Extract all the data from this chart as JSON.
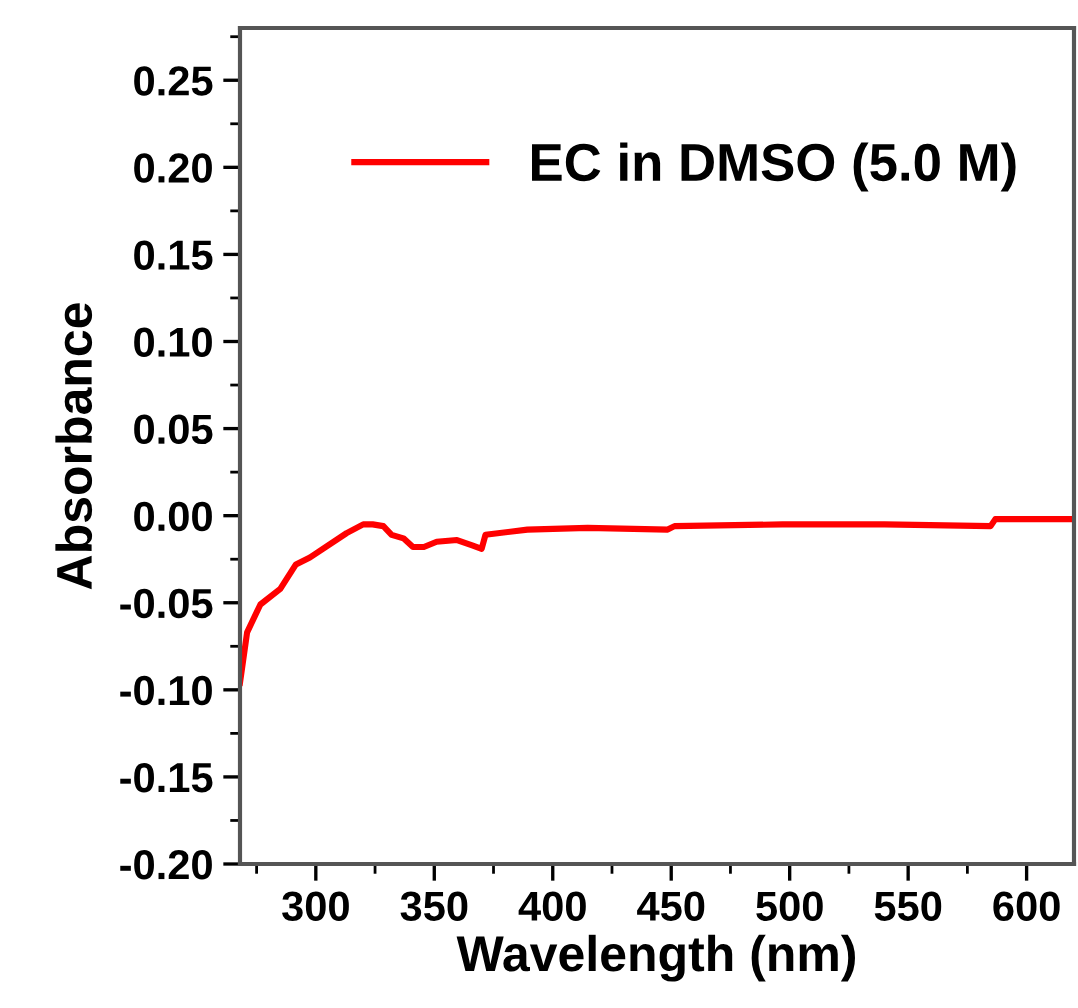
{
  "chart_data": {
    "type": "line",
    "xlabel": "Wavelength (nm)",
    "ylabel": "Absorbance",
    "xlim": [
      268,
      620
    ],
    "ylim": [
      -0.2,
      0.28
    ],
    "xticks": [
      300,
      350,
      400,
      450,
      500,
      550,
      600
    ],
    "yticks": [
      {
        "value": -0.2,
        "label": "-0.20"
      },
      {
        "value": -0.15,
        "label": "-0.15"
      },
      {
        "value": -0.1,
        "label": "-0.10"
      },
      {
        "value": -0.05,
        "label": "-0.05"
      },
      {
        "value": 0.0,
        "label": "0.00"
      },
      {
        "value": 0.05,
        "label": "0.05"
      },
      {
        "value": 0.1,
        "label": "0.10"
      },
      {
        "value": 0.15,
        "label": "0.15"
      },
      {
        "value": 0.2,
        "label": "0.20"
      },
      {
        "value": 0.25,
        "label": "0.25"
      }
    ],
    "grid": false,
    "legend": "top right",
    "marker": "none",
    "line_style": "solid",
    "series": [
      {
        "name": "EC in DMSO (5.0 M)",
        "color": "#ff0000",
        "x": [
          268,
          271,
          276.6,
          285,
          291.6,
          297.5,
          313,
          320,
          324,
          328.5,
          332,
          337,
          341,
          345.6,
          351,
          359.6,
          366,
          370,
          371.6,
          389.3,
          414.7,
          448.5,
          451.4,
          497,
          540,
          584.8,
          586.8,
          620
        ],
        "values": [
          -0.096,
          -0.067,
          -0.051,
          -0.042,
          -0.028,
          -0.024,
          -0.01,
          -0.005,
          -0.005,
          -0.006,
          -0.011,
          -0.013,
          -0.018,
          -0.018,
          -0.015,
          -0.014,
          -0.017,
          -0.019,
          -0.011,
          -0.008,
          -0.007,
          -0.008,
          -0.006,
          -0.005,
          -0.005,
          -0.006,
          -0.002,
          -0.002
        ]
      }
    ]
  }
}
